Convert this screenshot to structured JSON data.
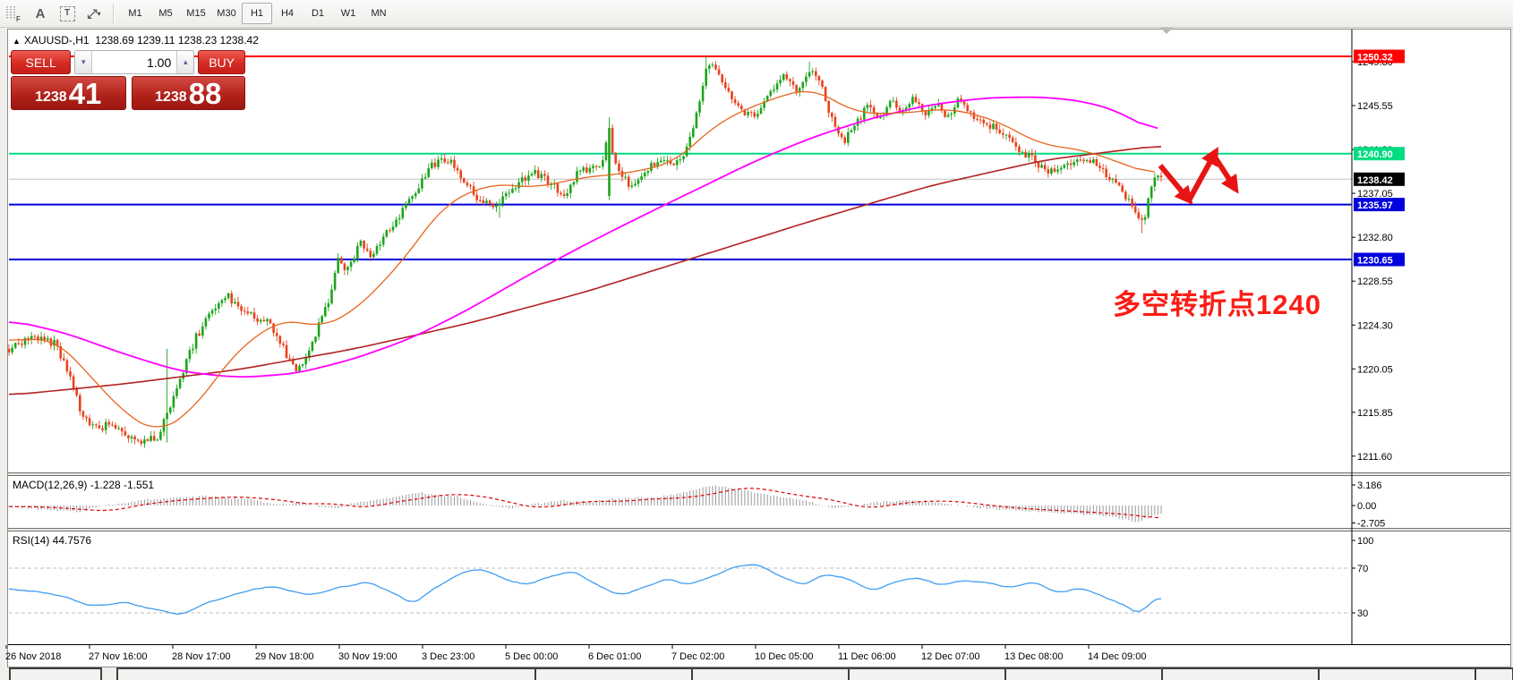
{
  "toolbar": {
    "icon_f": "F",
    "icon_a": "A",
    "icon_t": "T",
    "icon_arrows": "⤢",
    "icon_caret": "▾",
    "timeframes": [
      "M1",
      "M5",
      "M15",
      "M30",
      "H1",
      "H4",
      "D1",
      "W1",
      "MN"
    ],
    "active_timeframe": "H1"
  },
  "chart": {
    "title_arrow": "▲",
    "symbol": "XAUUSD-,H1",
    "ohlc_line": "1238.69 1239.11 1238.23 1238.42",
    "trade_panel": {
      "sell_label": "SELL",
      "buy_label": "BUY",
      "volume": "1.00",
      "sell_price_small": "1238",
      "sell_price_big": "41",
      "buy_price_small": "1238",
      "buy_price_big": "88",
      "spin_down": "▾",
      "spin_up": "▴"
    },
    "annotation_text": "多空转折点1240"
  },
  "macd_panel": {
    "label": "MACD(12,26,9) -1.228 -1.551",
    "ticks": [
      3.186,
      0.0,
      -2.705
    ],
    "tick_labels": [
      "3.186",
      "0.00",
      "-2.705"
    ]
  },
  "rsi_panel": {
    "label": "RSI(14) 44.7576",
    "ticks": [
      100,
      70,
      30
    ],
    "tick_labels": [
      "100",
      "70",
      "30"
    ]
  },
  "time_axis": [
    "26 Nov 2018",
    "27 Nov 16:00",
    "28 Nov 17:00",
    "29 Nov 18:00",
    "30 Nov 19:00",
    "3 Dec 23:00",
    "5 Dec 00:00",
    "6 Dec 01:00",
    "7 Dec 02:00",
    "10 Dec 05:00",
    "11 Dec 06:00",
    "12 Dec 07:00",
    "13 Dec 08:00",
    "14 Dec 09:00"
  ],
  "colors": {
    "bull": "#1CA51C",
    "bear": "#E8431C",
    "ma_magenta": "#FF00FF",
    "ma_orange": "#E8641E",
    "ma_darkred": "#B22222",
    "macd_hist": "#9A9A9A",
    "macd_signal": "#DD0000",
    "rsi_line": "#3F9DF2",
    "level_red": "#FF0000",
    "level_green": "#00DC82",
    "level_blue": "#0000DC",
    "current_line": "#C0C0C0",
    "current_label_bg": "#000000",
    "annotation": "#FB1D15",
    "arrow": "#E81414"
  },
  "chart_data": {
    "type": "candlestick",
    "symbol": "XAUUSD-",
    "timeframe": "H1",
    "current_bar": {
      "open": 1238.69,
      "high": 1239.11,
      "low": 1238.23,
      "close": 1238.42
    },
    "bid": 1238.41,
    "ask": 1238.88,
    "price_axis_ticks": [
      1249.8,
      1245.55,
      1241.3,
      1237.05,
      1232.8,
      1228.55,
      1224.3,
      1220.05,
      1215.85,
      1211.6
    ],
    "price_axis_tick_labels": [
      "1249.80",
      "1245.55",
      "1241.30",
      "1237.05",
      "1232.80",
      "1228.55",
      "1224.30",
      "1220.05",
      "1215.85",
      "1211.60"
    ],
    "levels": [
      {
        "price": 1250.32,
        "label": "1250.32",
        "style": "red"
      },
      {
        "price": 1240.9,
        "label": "1240.90",
        "style": "green"
      },
      {
        "price": 1238.42,
        "label": "1238.42",
        "style": "current"
      },
      {
        "price": 1235.97,
        "label": "1235.97",
        "style": "blue"
      },
      {
        "price": 1230.65,
        "label": "1230.65",
        "style": "blue"
      }
    ],
    "price_path": [
      [
        0.0,
        1222.0
      ],
      [
        0.02,
        1223.2
      ],
      [
        0.04,
        1222.5
      ],
      [
        0.052,
        1219.5
      ],
      [
        0.062,
        1216.0
      ],
      [
        0.075,
        1214.3
      ],
      [
        0.09,
        1214.8
      ],
      [
        0.105,
        1213.5
      ],
      [
        0.118,
        1213.0
      ],
      [
        0.13,
        1213.6
      ],
      [
        0.136,
        1215.5
      ],
      [
        0.148,
        1219.0
      ],
      [
        0.162,
        1223.0
      ],
      [
        0.175,
        1225.5
      ],
      [
        0.188,
        1227.3
      ],
      [
        0.2,
        1226.0
      ],
      [
        0.212,
        1225.0
      ],
      [
        0.225,
        1224.5
      ],
      [
        0.238,
        1222.0
      ],
      [
        0.25,
        1219.8
      ],
      [
        0.258,
        1221.5
      ],
      [
        0.268,
        1224.0
      ],
      [
        0.278,
        1227.0
      ],
      [
        0.285,
        1230.5
      ],
      [
        0.295,
        1229.5
      ],
      [
        0.305,
        1232.5
      ],
      [
        0.315,
        1230.8
      ],
      [
        0.325,
        1233.0
      ],
      [
        0.34,
        1235.0
      ],
      [
        0.355,
        1237.8
      ],
      [
        0.368,
        1239.8
      ],
      [
        0.381,
        1240.3
      ],
      [
        0.393,
        1238.8
      ],
      [
        0.405,
        1236.8
      ],
      [
        0.42,
        1235.6
      ],
      [
        0.432,
        1236.8
      ],
      [
        0.445,
        1238.2
      ],
      [
        0.458,
        1239.0
      ],
      [
        0.47,
        1238.0
      ],
      [
        0.482,
        1236.8
      ],
      [
        0.495,
        1239.2
      ],
      [
        0.515,
        1239.8
      ],
      [
        0.52,
        1243.3
      ],
      [
        0.528,
        1239.0
      ],
      [
        0.54,
        1237.8
      ],
      [
        0.552,
        1239.2
      ],
      [
        0.565,
        1240.6
      ],
      [
        0.578,
        1239.8
      ],
      [
        0.588,
        1241.2
      ],
      [
        0.598,
        1245.0
      ],
      [
        0.606,
        1249.3
      ],
      [
        0.614,
        1249.0
      ],
      [
        0.624,
        1247.0
      ],
      [
        0.636,
        1245.2
      ],
      [
        0.648,
        1244.2
      ],
      [
        0.66,
        1246.6
      ],
      [
        0.672,
        1248.8
      ],
      [
        0.684,
        1247.0
      ],
      [
        0.695,
        1249.0
      ],
      [
        0.705,
        1247.5
      ],
      [
        0.715,
        1244.0
      ],
      [
        0.725,
        1242.0
      ],
      [
        0.735,
        1243.8
      ],
      [
        0.745,
        1245.5
      ],
      [
        0.755,
        1244.3
      ],
      [
        0.765,
        1246.0
      ],
      [
        0.775,
        1245.0
      ],
      [
        0.785,
        1246.3
      ],
      [
        0.795,
        1244.8
      ],
      [
        0.805,
        1245.8
      ],
      [
        0.815,
        1244.3
      ],
      [
        0.825,
        1246.2
      ],
      [
        0.831,
        1245.2
      ],
      [
        0.845,
        1243.8
      ],
      [
        0.862,
        1243.2
      ],
      [
        0.876,
        1241.5
      ],
      [
        0.886,
        1240.6
      ],
      [
        0.9,
        1239.2
      ],
      [
        0.917,
        1239.8
      ],
      [
        0.93,
        1240.5
      ],
      [
        0.944,
        1239.9
      ],
      [
        0.955,
        1238.5
      ],
      [
        0.964,
        1237.8
      ],
      [
        0.972,
        1236.3
      ],
      [
        0.98,
        1234.6
      ],
      [
        0.984,
        1234.0
      ],
      [
        0.989,
        1236.8
      ],
      [
        0.994,
        1239.0
      ],
      [
        1.0,
        1238.42
      ]
    ],
    "spikes": [
      {
        "f": 0.136,
        "h": 1222.0,
        "l": 1212.9
      },
      {
        "f": 0.427,
        "l": 1234.7
      },
      {
        "f": 0.52,
        "o": 1236.8,
        "c": 1243.4,
        "h": 1244.4
      },
      {
        "f": 0.606,
        "h": 1250.32
      },
      {
        "f": 0.695,
        "h": 1249.8
      },
      {
        "f": 0.984,
        "l": 1233.2
      }
    ],
    "ma_magenta": [
      [
        0,
        1224.8
      ],
      [
        0.05,
        1223.5
      ],
      [
        0.1,
        1221.5
      ],
      [
        0.15,
        1219.8
      ],
      [
        0.2,
        1219.2
      ],
      [
        0.25,
        1219.6
      ],
      [
        0.3,
        1221.0
      ],
      [
        0.35,
        1223.0
      ],
      [
        0.4,
        1225.8
      ],
      [
        0.45,
        1229.0
      ],
      [
        0.5,
        1232.0
      ],
      [
        0.55,
        1234.8
      ],
      [
        0.6,
        1237.5
      ],
      [
        0.65,
        1240.2
      ],
      [
        0.7,
        1242.5
      ],
      [
        0.75,
        1244.3
      ],
      [
        0.8,
        1245.6
      ],
      [
        0.85,
        1246.3
      ],
      [
        0.9,
        1246.4
      ],
      [
        0.94,
        1245.9
      ],
      [
        0.97,
        1244.8
      ],
      [
        1.0,
        1242.8
      ]
    ],
    "ma_orange": [
      [
        0,
        1222.8
      ],
      [
        0.04,
        1223.0
      ],
      [
        0.07,
        1219.5
      ],
      [
        0.1,
        1215.8
      ],
      [
        0.13,
        1213.8
      ],
      [
        0.16,
        1216.0
      ],
      [
        0.2,
        1222.0
      ],
      [
        0.24,
        1225.0
      ],
      [
        0.27,
        1224.0
      ],
      [
        0.3,
        1225.5
      ],
      [
        0.34,
        1230.0
      ],
      [
        0.38,
        1236.0
      ],
      [
        0.42,
        1238.0
      ],
      [
        0.46,
        1237.6
      ],
      [
        0.5,
        1238.6
      ],
      [
        0.54,
        1239.0
      ],
      [
        0.58,
        1240.0
      ],
      [
        0.62,
        1244.0
      ],
      [
        0.66,
        1246.0
      ],
      [
        0.7,
        1247.3
      ],
      [
        0.74,
        1244.8
      ],
      [
        0.78,
        1244.8
      ],
      [
        0.82,
        1245.3
      ],
      [
        0.86,
        1244.2
      ],
      [
        0.9,
        1241.8
      ],
      [
        0.94,
        1241.2
      ],
      [
        0.97,
        1240.0
      ],
      [
        1.0,
        1238.8
      ]
    ],
    "ma_darkred": [
      [
        0,
        1217.5
      ],
      [
        0.1,
        1218.6
      ],
      [
        0.2,
        1220.0
      ],
      [
        0.3,
        1222.0
      ],
      [
        0.4,
        1224.5
      ],
      [
        0.5,
        1227.5
      ],
      [
        0.6,
        1231.0
      ],
      [
        0.7,
        1234.5
      ],
      [
        0.8,
        1237.8
      ],
      [
        0.9,
        1240.3
      ],
      [
        1.0,
        1241.7
      ]
    ],
    "macd": {
      "last_main": -1.228,
      "last_signal": -1.551,
      "main": [
        [
          0,
          -0.2
        ],
        [
          0.04,
          -0.7
        ],
        [
          0.06,
          -1.0
        ],
        [
          0.085,
          0.1
        ],
        [
          0.12,
          0.9
        ],
        [
          0.17,
          1.5
        ],
        [
          0.21,
          0.9
        ],
        [
          0.233,
          0.1
        ],
        [
          0.255,
          0.5
        ],
        [
          0.268,
          -0.2
        ],
        [
          0.285,
          -0.4
        ],
        [
          0.295,
          0.2
        ],
        [
          0.33,
          1.2
        ],
        [
          0.357,
          2.0
        ],
        [
          0.39,
          1.4
        ],
        [
          0.412,
          0.2
        ],
        [
          0.435,
          -0.5
        ],
        [
          0.455,
          0.2
        ],
        [
          0.48,
          0.8
        ],
        [
          0.505,
          0.6
        ],
        [
          0.52,
          1.0
        ],
        [
          0.56,
          1.3
        ],
        [
          0.58,
          1.8
        ],
        [
          0.606,
          2.9
        ],
        [
          0.62,
          3.0
        ],
        [
          0.637,
          2.4
        ],
        [
          0.66,
          1.6
        ],
        [
          0.69,
          0.9
        ],
        [
          0.7,
          0.3
        ],
        [
          0.715,
          -0.5
        ],
        [
          0.73,
          -0.2
        ],
        [
          0.75,
          0.5
        ],
        [
          0.78,
          0.8
        ],
        [
          0.8,
          0.6
        ],
        [
          0.816,
          0.2
        ],
        [
          0.84,
          -0.3
        ],
        [
          0.86,
          -0.6
        ],
        [
          0.89,
          -0.9
        ],
        [
          0.92,
          -1.2
        ],
        [
          0.95,
          -1.6
        ],
        [
          0.965,
          -2.0
        ],
        [
          0.979,
          -2.6
        ],
        [
          0.99,
          -1.8
        ],
        [
          1.0,
          -1.228
        ]
      ]
    },
    "rsi": {
      "last": 44.7576,
      "overbought": 70,
      "oversold": 30,
      "line": [
        [
          0,
          52
        ],
        [
          0.03,
          48
        ],
        [
          0.055,
          42
        ],
        [
          0.075,
          35
        ],
        [
          0.1,
          40
        ],
        [
          0.125,
          33
        ],
        [
          0.15,
          29
        ],
        [
          0.17,
          38
        ],
        [
          0.2,
          48
        ],
        [
          0.23,
          55
        ],
        [
          0.26,
          45
        ],
        [
          0.285,
          52
        ],
        [
          0.31,
          58
        ],
        [
          0.33,
          50
        ],
        [
          0.35,
          38
        ],
        [
          0.37,
          52
        ],
        [
          0.39,
          65
        ],
        [
          0.41,
          70
        ],
        [
          0.43,
          60
        ],
        [
          0.45,
          55
        ],
        [
          0.47,
          63
        ],
        [
          0.49,
          68
        ],
        [
          0.51,
          55
        ],
        [
          0.53,
          45
        ],
        [
          0.55,
          52
        ],
        [
          0.57,
          60
        ],
        [
          0.59,
          55
        ],
        [
          0.61,
          62
        ],
        [
          0.63,
          72
        ],
        [
          0.65,
          74
        ],
        [
          0.67,
          62
        ],
        [
          0.69,
          55
        ],
        [
          0.71,
          65
        ],
        [
          0.73,
          60
        ],
        [
          0.75,
          50
        ],
        [
          0.77,
          58
        ],
        [
          0.79,
          62
        ],
        [
          0.81,
          55
        ],
        [
          0.83,
          60
        ],
        [
          0.85,
          57
        ],
        [
          0.87,
          52
        ],
        [
          0.89,
          58
        ],
        [
          0.91,
          48
        ],
        [
          0.93,
          52
        ],
        [
          0.945,
          47
        ],
        [
          0.955,
          42
        ],
        [
          0.965,
          38
        ],
        [
          0.975,
          33
        ],
        [
          0.982,
          27
        ],
        [
          0.99,
          40
        ],
        [
          1.0,
          44.76
        ]
      ]
    },
    "trend_arrows": [
      [
        1296,
        185,
        1326,
        221
      ],
      [
        1328,
        224,
        1356,
        173
      ],
      [
        1356,
        174,
        1378,
        208
      ]
    ]
  }
}
